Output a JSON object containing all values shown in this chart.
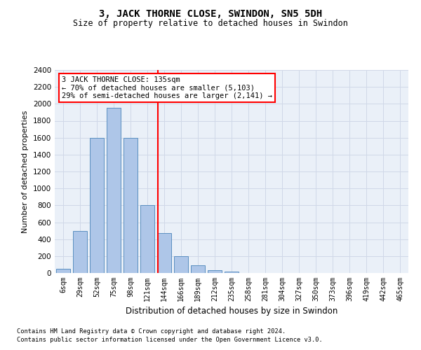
{
  "title": "3, JACK THORNE CLOSE, SWINDON, SN5 5DH",
  "subtitle": "Size of property relative to detached houses in Swindon",
  "xlabel": "Distribution of detached houses by size in Swindon",
  "ylabel": "Number of detached properties",
  "categories": [
    "6sqm",
    "29sqm",
    "52sqm",
    "75sqm",
    "98sqm",
    "121sqm",
    "144sqm",
    "166sqm",
    "189sqm",
    "212sqm",
    "235sqm",
    "258sqm",
    "281sqm",
    "304sqm",
    "327sqm",
    "350sqm",
    "373sqm",
    "396sqm",
    "419sqm",
    "442sqm",
    "465sqm"
  ],
  "values": [
    50,
    500,
    1600,
    1950,
    1600,
    800,
    470,
    200,
    90,
    30,
    20,
    0,
    0,
    0,
    0,
    0,
    0,
    0,
    0,
    0,
    0
  ],
  "bar_color": "#aec6e8",
  "bar_edge_color": "#5a8fc0",
  "vline_color": "red",
  "annotation_text": "3 JACK THORNE CLOSE: 135sqm\n← 70% of detached houses are smaller (5,103)\n29% of semi-detached houses are larger (2,141) →",
  "annotation_box_color": "white",
  "annotation_box_edge_color": "red",
  "ylim": [
    0,
    2400
  ],
  "yticks": [
    0,
    200,
    400,
    600,
    800,
    1000,
    1200,
    1400,
    1600,
    1800,
    2000,
    2200,
    2400
  ],
  "grid_color": "#d0d8e8",
  "background_color": "#eaf0f8",
  "footer1": "Contains HM Land Registry data © Crown copyright and database right 2024.",
  "footer2": "Contains public sector information licensed under the Open Government Licence v3.0."
}
